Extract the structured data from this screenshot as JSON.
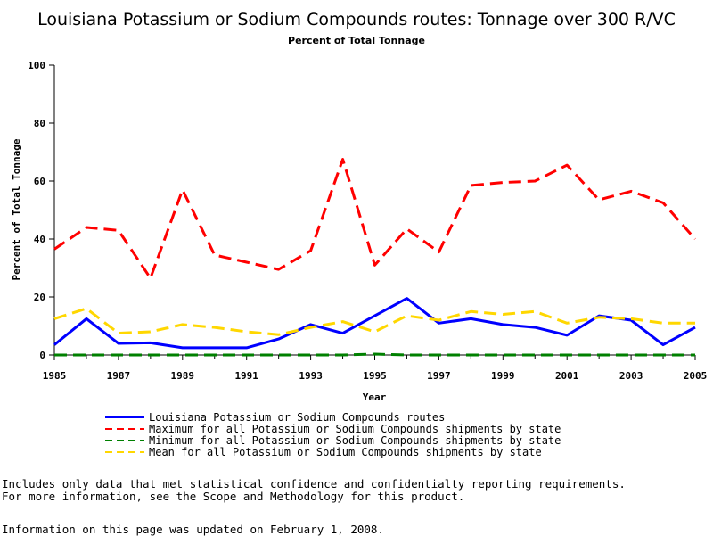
{
  "chart_data": {
    "type": "line",
    "title": "Louisiana Potassium or Sodium Compounds routes: Tonnage over 300 R/VC",
    "subtitle": "Percent of Total Tonnage",
    "xlabel": "Year",
    "ylabel": "Percent of Total Tonnage",
    "xlim": [
      1985,
      2005
    ],
    "ylim": [
      0,
      100
    ],
    "xticks": [
      "1985",
      "1987",
      "1989",
      "1991",
      "1993",
      "1995",
      "1997",
      "1999",
      "2001",
      "2003",
      "2005"
    ],
    "yticks": [
      "0",
      "20",
      "40",
      "60",
      "80",
      "100"
    ],
    "x": [
      1985,
      1986,
      1987,
      1988,
      1989,
      1990,
      1991,
      1992,
      1993,
      1994,
      1995,
      1996,
      1997,
      1998,
      1999,
      2000,
      2001,
      2002,
      2003,
      2004,
      2005
    ],
    "legend_position": "bottom",
    "grid": false,
    "series": [
      {
        "name": "Louisiana Potassium or Sodium Compounds routes",
        "color": "#0000ff",
        "dash": "solid",
        "values": [
          3.5,
          12.5,
          4,
          4.2,
          2.5,
          2.5,
          2.5,
          5.5,
          10.5,
          7.5,
          13.5,
          19.5,
          11,
          12.5,
          10.5,
          9.5,
          6.8,
          13.5,
          12,
          3.5,
          9.5
        ]
      },
      {
        "name": "Maximum for all Potassium or Sodium Compounds shipments by state",
        "color": "#ff0000",
        "dash": "dashed",
        "values": [
          36.5,
          44,
          43,
          26.5,
          57,
          34.5,
          32,
          29.5,
          36,
          67.5,
          31,
          43.5,
          35.5,
          58.5,
          59.5,
          60,
          65.5,
          53.5,
          56.5,
          52.5,
          40
        ]
      },
      {
        "name": "Minimum for all Potassium or Sodium Compounds shipments by state",
        "color": "#008000",
        "dash": "dashed",
        "values": [
          0,
          0,
          0,
          0,
          0,
          0,
          0,
          0,
          0,
          0,
          0.3,
          0,
          0,
          0,
          0,
          0,
          0,
          0,
          0,
          0,
          0
        ]
      },
      {
        "name": "Mean for all Potassium or Sodium Compounds shipments by state",
        "color": "#ffd700",
        "dash": "dashed",
        "values": [
          12.5,
          16,
          7.5,
          8,
          10.5,
          9.5,
          8,
          7,
          9.5,
          11.5,
          8,
          13.5,
          12,
          15,
          14,
          15,
          11,
          13,
          12.5,
          11,
          11
        ]
      }
    ]
  },
  "footnotes": {
    "line1": "Includes only data that met statistical confidence and confidentialty reporting requirements.",
    "line2": "For more information, see the Scope and Methodology for this product.",
    "updated": "Information on this page was updated on February 1, 2008."
  }
}
